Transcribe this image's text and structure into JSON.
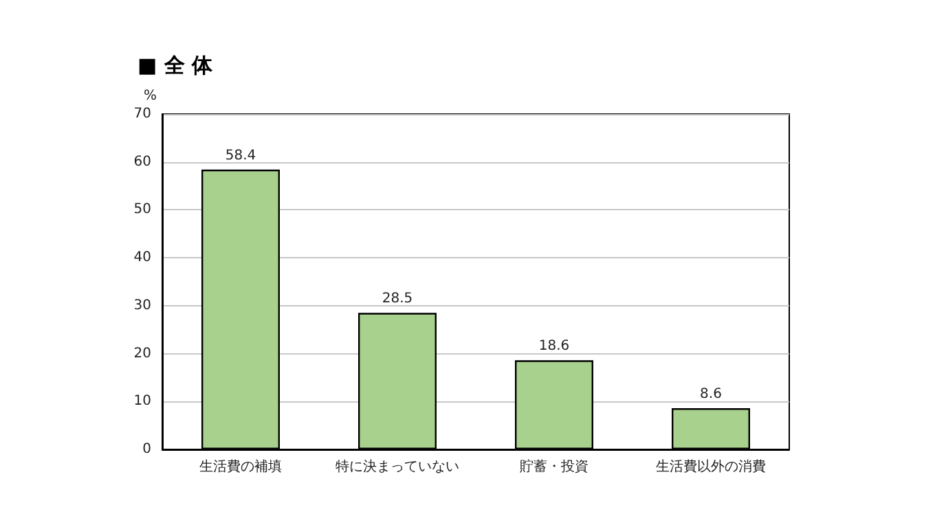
{
  "chart_data": {
    "type": "bar",
    "title": "■ 全 体",
    "ylabel": "%",
    "categories": [
      "生活費の補填",
      "特に決まっていない",
      "貯蓄・投資",
      "生活費以外の消費"
    ],
    "values": [
      58.4,
      28.5,
      18.6,
      8.6
    ],
    "color": "#a9d18e",
    "ylim": [
      0,
      70
    ],
    "yticks": [
      0,
      10,
      20,
      30,
      40,
      50,
      60,
      70
    ],
    "grid": "y",
    "data_labels": true
  }
}
